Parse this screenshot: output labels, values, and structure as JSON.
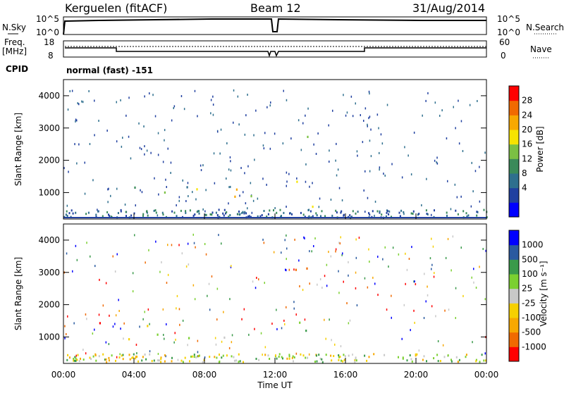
{
  "header": {
    "station": "Kerguelen (fitACF)",
    "beam": "Beam 12",
    "date": "31/Aug/2014"
  },
  "top_panel": {
    "nsky_label": "N.Sky",
    "nsky_ticks": [
      "10^5",
      "10^0"
    ],
    "nsearch_label": "N.Search",
    "nsearch_ticks": [
      "10^5",
      "10^0"
    ],
    "freq_label": "Freq.",
    "freq_unit": "[MHz]",
    "freq_ticks": [
      "18",
      "8"
    ],
    "nave_label": "Nave",
    "nave_ticks": [
      "60",
      "0"
    ],
    "cpid_label": "CPID",
    "cpid_value": "normal (fast) -151"
  },
  "chart_data": [
    {
      "type": "heatmap",
      "name": "power",
      "ylabel": "Slant Range [km]",
      "y_ticks": [
        "4000",
        "3000",
        "2000",
        "1000"
      ],
      "ylim": [
        180,
        4500
      ],
      "x_ticks": [
        "00:00",
        "04:00",
        "08:00",
        "12:00",
        "16:00",
        "20:00",
        "00:00"
      ],
      "xlim": [
        0,
        24
      ],
      "colorbar": {
        "label": "Power [dB]",
        "ticks": [
          "28",
          "24",
          "20",
          "16",
          "12",
          "8",
          "4"
        ],
        "colors": [
          "#0000ff",
          "#2040a0",
          "#2e6f8e",
          "#3a8a5a",
          "#7bc043",
          "#f6e300",
          "#f7a800",
          "#f06a00",
          "#ff0000"
        ],
        "range": [
          0,
          32
        ]
      },
      "blobs": [
        {
          "t0": 3.0,
          "t1": 5.5,
          "r0": 1000,
          "r1": 1450,
          "level": 0.45
        },
        {
          "t0": 5.5,
          "t1": 8.5,
          "r0": 900,
          "r1": 1350,
          "level": 0.4
        },
        {
          "t0": 8.5,
          "t1": 11.8,
          "r0": 850,
          "r1": 1300,
          "level": 0.55
        },
        {
          "t0": 6.2,
          "t1": 9.2,
          "r0": 950,
          "r1": 1150,
          "level": 0.7
        },
        {
          "t0": 9.5,
          "t1": 11.3,
          "r0": 900,
          "r1": 1150,
          "level": 0.8
        },
        {
          "t0": 10.5,
          "t1": 11.2,
          "r0": 1750,
          "r1": 2250,
          "level": 0.75
        },
        {
          "t0": 1.0,
          "t1": 1.4,
          "r0": 1400,
          "r1": 1650,
          "level": 0.5
        },
        {
          "t0": 2.0,
          "t1": 2.4,
          "r0": 1500,
          "r1": 1800,
          "level": 0.35
        },
        {
          "t0": 2.6,
          "t1": 2.9,
          "r0": 2300,
          "r1": 2650,
          "level": 0.35
        },
        {
          "t0": 12.5,
          "t1": 14.5,
          "r0": 1000,
          "r1": 1600,
          "level": 0.4
        },
        {
          "t0": 12.8,
          "t1": 13.5,
          "r0": 1900,
          "r1": 2500,
          "level": 0.55
        },
        {
          "t0": 13.2,
          "t1": 14.6,
          "r0": 2600,
          "r1": 3500,
          "level": 0.35
        },
        {
          "t0": 12.7,
          "t1": 14.7,
          "r0": 550,
          "r1": 800,
          "level": 0.65
        },
        {
          "t0": 14.0,
          "t1": 15.0,
          "r0": 700,
          "r1": 950,
          "level": 0.75
        }
      ]
    },
    {
      "type": "heatmap",
      "name": "velocity",
      "ylabel": "Slant Range [km]",
      "y_ticks": [
        "4000",
        "3000",
        "2000",
        "1000"
      ],
      "ylim": [
        180,
        4500
      ],
      "x_ticks": [
        "00:00",
        "04:00",
        "08:00",
        "12:00",
        "16:00",
        "20:00",
        "00:00"
      ],
      "xlim": [
        0,
        24
      ],
      "xlabel": "Time UT",
      "colorbar": {
        "label": "Velocity [m s⁻¹]",
        "ticks": [
          "1000",
          "500",
          "100",
          "25",
          "-25",
          "-100",
          "-500",
          "-1000"
        ],
        "colors": [
          "#ff0000",
          "#f06a00",
          "#f7a800",
          "#f6d000",
          "#c8c8c8",
          "#7bd030",
          "#3a9a4a",
          "#2a5aa0",
          "#0000ff"
        ],
        "range": [
          -1200,
          1200
        ]
      },
      "blobs": [
        {
          "t0": 3.0,
          "t1": 11.8,
          "r0": 900,
          "r1": 1400,
          "level": 0.5
        },
        {
          "t0": 12.5,
          "t1": 15.0,
          "r0": 950,
          "r1": 1500,
          "level": 0.5
        },
        {
          "t0": 1.0,
          "t1": 2.4,
          "r0": 1400,
          "r1": 1900,
          "level": 0.2
        },
        {
          "t0": 10.5,
          "t1": 11.2,
          "r0": 1800,
          "r1": 2300,
          "level": 0.2
        },
        {
          "t0": 12.8,
          "t1": 14.6,
          "r0": 2300,
          "r1": 3500,
          "level": 0.2
        },
        {
          "t0": 13.8,
          "t1": 14.9,
          "r0": 550,
          "r1": 850,
          "level": 0.7
        }
      ]
    }
  ]
}
